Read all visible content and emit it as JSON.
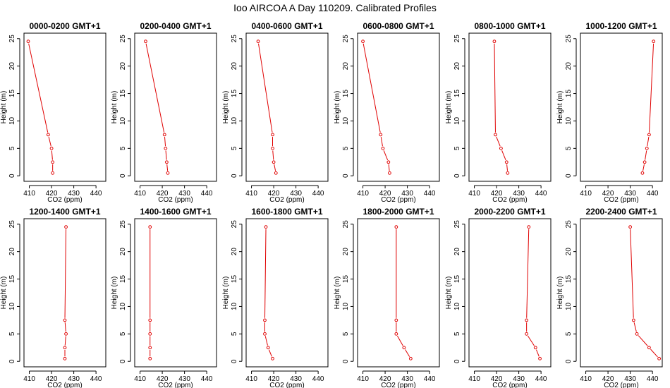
{
  "figure": {
    "title": "Ioo AIRCOA A  Day 110209. Calibrated Profiles"
  },
  "style": {
    "line_color": "#e00000",
    "axis_color": "#000000",
    "background": "#ffffff"
  },
  "chart_data": [
    {
      "type": "line",
      "title": "0000-0200 GMT+1",
      "xlabel": "CO2 (ppm)",
      "ylabel": "Height (m)",
      "xlim": [
        410,
        440
      ],
      "ylim": [
        0,
        25
      ],
      "xticks": [
        410,
        420,
        430,
        440
      ],
      "yticks": [
        0,
        5,
        10,
        15,
        20,
        25
      ],
      "series": [
        {
          "x": [
            420.5,
            420.5,
            420.0,
            418.5,
            409.5
          ],
          "y": [
            0.5,
            2.5,
            5,
            7.5,
            24.5
          ]
        }
      ]
    },
    {
      "type": "line",
      "title": "0200-0400 GMT+1",
      "xlabel": "CO2 (ppm)",
      "ylabel": "Height (m)",
      "xlim": [
        410,
        440
      ],
      "ylim": [
        0,
        25
      ],
      "xticks": [
        410,
        420,
        430,
        440
      ],
      "yticks": [
        0,
        5,
        10,
        15,
        20,
        25
      ],
      "series": [
        {
          "x": [
            422.5,
            422.0,
            421.5,
            421.0,
            412.5
          ],
          "y": [
            0.5,
            2.5,
            5,
            7.5,
            24.5
          ]
        }
      ]
    },
    {
      "type": "line",
      "title": "0400-0600 GMT+1",
      "xlabel": "CO2 (ppm)",
      "ylabel": "Height (m)",
      "xlim": [
        410,
        440
      ],
      "ylim": [
        0,
        25
      ],
      "xticks": [
        410,
        420,
        430,
        440
      ],
      "yticks": [
        0,
        5,
        10,
        15,
        20,
        25
      ],
      "series": [
        {
          "x": [
            421.0,
            420.0,
            419.5,
            419.5,
            413.0
          ],
          "y": [
            0.5,
            2.5,
            5,
            7.5,
            24.5
          ]
        }
      ]
    },
    {
      "type": "line",
      "title": "0600-0800 GMT+1",
      "xlabel": "CO2 (ppm)",
      "ylabel": "Height (m)",
      "xlim": [
        410,
        440
      ],
      "ylim": [
        0,
        25
      ],
      "xticks": [
        410,
        420,
        430,
        440
      ],
      "yticks": [
        0,
        5,
        10,
        15,
        20,
        25
      ],
      "series": [
        {
          "x": [
            422.0,
            421.5,
            419.0,
            418.0,
            410.0
          ],
          "y": [
            0.5,
            2.5,
            5,
            7.5,
            24.5
          ]
        }
      ]
    },
    {
      "type": "line",
      "title": "0800-1000 GMT+1",
      "xlabel": "CO2 (ppm)",
      "ylabel": "Height (m)",
      "xlim": [
        410,
        440
      ],
      "ylim": [
        0,
        25
      ],
      "xticks": [
        410,
        420,
        430,
        440
      ],
      "yticks": [
        0,
        5,
        10,
        15,
        20,
        25
      ],
      "series": [
        {
          "x": [
            425.0,
            424.5,
            422.0,
            419.5,
            419.0
          ],
          "y": [
            0.5,
            2.5,
            5,
            7.5,
            24.5
          ]
        }
      ]
    },
    {
      "type": "line",
      "title": "1000-1200 GMT+1",
      "xlabel": "CO2 (ppm)",
      "ylabel": "Height (m)",
      "xlim": [
        410,
        440
      ],
      "ylim": [
        0,
        25
      ],
      "xticks": [
        410,
        420,
        430,
        440
      ],
      "yticks": [
        0,
        5,
        10,
        15,
        20,
        25
      ],
      "series": [
        {
          "x": [
            435.5,
            436.5,
            437.5,
            438.5,
            440.5
          ],
          "y": [
            0.5,
            2.5,
            5,
            7.5,
            24.5
          ]
        }
      ]
    },
    {
      "type": "line",
      "title": "1200-1400 GMT+1",
      "xlabel": "CO2 (ppm)",
      "ylabel": "Height (m)",
      "xlim": [
        410,
        440
      ],
      "ylim": [
        0,
        25
      ],
      "xticks": [
        410,
        420,
        430,
        440
      ],
      "yticks": [
        0,
        5,
        10,
        15,
        20,
        25
      ],
      "series": [
        {
          "x": [
            426.0,
            426.0,
            426.5,
            426.0,
            426.5
          ],
          "y": [
            0.5,
            2.5,
            5,
            7.5,
            24.5
          ]
        }
      ]
    },
    {
      "type": "line",
      "title": "1400-1600 GMT+1",
      "xlabel": "CO2 (ppm)",
      "ylabel": "Height (m)",
      "xlim": [
        410,
        440
      ],
      "ylim": [
        0,
        25
      ],
      "xticks": [
        410,
        420,
        430,
        440
      ],
      "yticks": [
        0,
        5,
        10,
        15,
        20,
        25
      ],
      "series": [
        {
          "x": [
            414.5,
            414.5,
            414.5,
            414.5,
            414.5
          ],
          "y": [
            0.5,
            2.5,
            5,
            7.5,
            24.5
          ]
        }
      ]
    },
    {
      "type": "line",
      "title": "1600-1800 GMT+1",
      "xlabel": "CO2 (ppm)",
      "ylabel": "Height (m)",
      "xlim": [
        410,
        440
      ],
      "ylim": [
        0,
        25
      ],
      "xticks": [
        410,
        420,
        430,
        440
      ],
      "yticks": [
        0,
        5,
        10,
        15,
        20,
        25
      ],
      "series": [
        {
          "x": [
            419.5,
            417.5,
            416.0,
            416.0,
            416.5
          ],
          "y": [
            0.5,
            2.5,
            5,
            7.5,
            24.5
          ]
        }
      ]
    },
    {
      "type": "line",
      "title": "1800-2000 GMT+1",
      "xlabel": "CO2 (ppm)",
      "ylabel": "Height (m)",
      "xlim": [
        410,
        440
      ],
      "ylim": [
        0,
        25
      ],
      "xticks": [
        410,
        420,
        430,
        440
      ],
      "yticks": [
        0,
        5,
        10,
        15,
        20,
        25
      ],
      "series": [
        {
          "x": [
            431.5,
            428.5,
            425.0,
            425.0,
            425.0
          ],
          "y": [
            0.5,
            2.5,
            5,
            7.5,
            24.5
          ]
        }
      ]
    },
    {
      "type": "line",
      "title": "2000-2200 GMT+1",
      "xlabel": "CO2 (ppm)",
      "ylabel": "Height (m)",
      "xlim": [
        410,
        440
      ],
      "ylim": [
        0,
        25
      ],
      "xticks": [
        410,
        420,
        430,
        440
      ],
      "yticks": [
        0,
        5,
        10,
        15,
        20,
        25
      ],
      "series": [
        {
          "x": [
            439.5,
            437.5,
            433.5,
            433.5,
            434.5
          ],
          "y": [
            0.5,
            2.5,
            5,
            7.5,
            24.5
          ]
        }
      ]
    },
    {
      "type": "line",
      "title": "2200-2400 GMT+1",
      "xlabel": "CO2 (ppm)",
      "ylabel": "Height (m)",
      "xlim": [
        410,
        440
      ],
      "ylim": [
        0,
        25
      ],
      "xticks": [
        410,
        420,
        430,
        440
      ],
      "yticks": [
        0,
        5,
        10,
        15,
        20,
        25
      ],
      "series": [
        {
          "x": [
            443.0,
            438.5,
            433.0,
            431.5,
            430.0
          ],
          "y": [
            0.5,
            2.5,
            5,
            7.5,
            24.5
          ]
        }
      ]
    }
  ]
}
